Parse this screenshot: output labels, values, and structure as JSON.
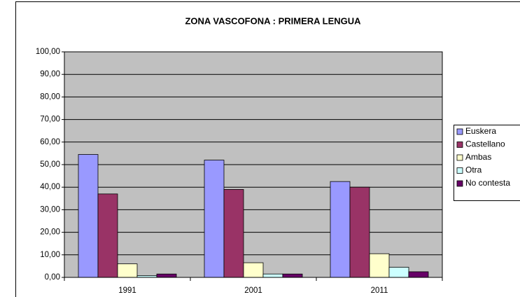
{
  "chart_data": {
    "type": "bar",
    "title": "ZONA VASCOFONA : PRIMERA LENGUA",
    "categories": [
      "1991",
      "2001",
      "2011"
    ],
    "series": [
      {
        "name": "Euskera",
        "color": "#9999ff",
        "values": [
          54.5,
          52,
          42.5
        ]
      },
      {
        "name": "Castellano",
        "color": "#993366",
        "values": [
          37,
          39,
          40
        ]
      },
      {
        "name": "Ambas",
        "color": "#ffffcc",
        "values": [
          6,
          6.5,
          10.5
        ]
      },
      {
        "name": "Otra",
        "color": "#ccffff",
        "values": [
          0.8,
          1.5,
          4.5
        ]
      },
      {
        "name": "No contesta",
        "color": "#660066",
        "values": [
          1.5,
          1.5,
          2.5
        ]
      }
    ],
    "ylim": [
      0,
      100
    ],
    "yticks": [
      {
        "value": 0,
        "label": "0,00"
      },
      {
        "value": 10,
        "label": "10,00"
      },
      {
        "value": 20,
        "label": "20,00"
      },
      {
        "value": 30,
        "label": "30,00"
      },
      {
        "value": 40,
        "label": "40,00"
      },
      {
        "value": 50,
        "label": "50,00"
      },
      {
        "value": 60,
        "label": "60,00"
      },
      {
        "value": 70,
        "label": "70,00"
      },
      {
        "value": 80,
        "label": "80,00"
      },
      {
        "value": 90,
        "label": "90,00"
      },
      {
        "value": 100,
        "label": "100,00"
      }
    ],
    "grid": true,
    "legend": "right"
  }
}
